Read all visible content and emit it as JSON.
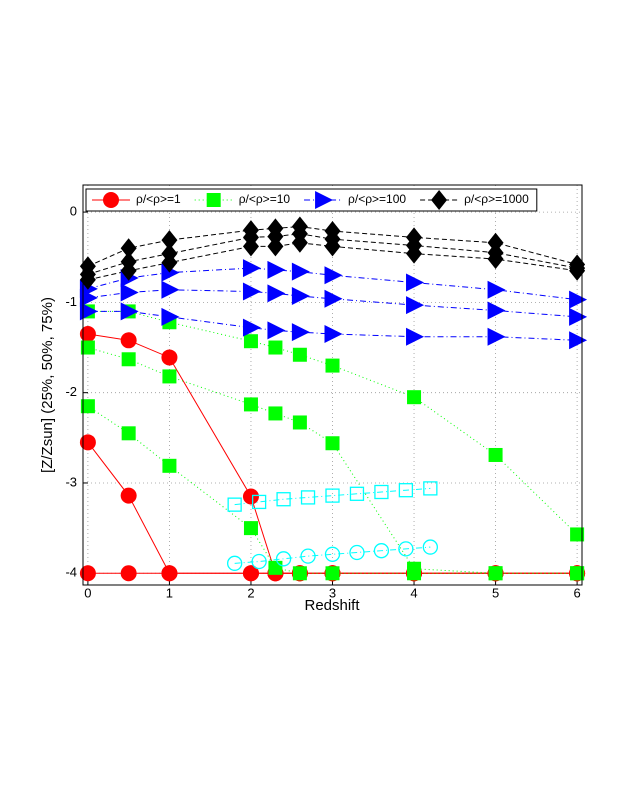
{
  "chart_data": {
    "type": "line",
    "xlabel": "Redshift",
    "ylabel": "[Z/Zsun] (25%, 50%, 75%)",
    "xlim": [
      -0.06,
      6.06
    ],
    "ylim": [
      -4.13,
      0.3
    ],
    "xticks": [
      0,
      1,
      2,
      3,
      4,
      5,
      6
    ],
    "yticks": [
      0,
      -1,
      -2,
      -3,
      -4
    ],
    "grid": true,
    "legend": "top-left",
    "series": [
      {
        "name": "ρ/<ρ>=1",
        "color": "#ff0000",
        "marker": "circle",
        "linestyle": "solid",
        "x": [
          0,
          0.5,
          1,
          2,
          2.3,
          2.6,
          3,
          4,
          5,
          6
        ],
        "values": [
          -1.35,
          -1.42,
          -1.61,
          -3.15,
          -4,
          -4,
          -4,
          -4,
          -4,
          -4
        ]
      },
      {
        "color": "#ff0000",
        "marker": "circle",
        "linestyle": "solid",
        "x": [
          0,
          0.5,
          1,
          2,
          2.3,
          2.6,
          3,
          4,
          5,
          6
        ],
        "values": [
          -2.55,
          -3.14,
          -4,
          -4,
          -4,
          -4,
          -4,
          -4,
          -4,
          -4
        ]
      },
      {
        "color": "#ff0000",
        "marker": "circle",
        "linestyle": "solid",
        "x": [
          0,
          0.5,
          1,
          2,
          2.3,
          2.6,
          3,
          4,
          5,
          6
        ],
        "values": [
          -4,
          -4,
          -4,
          -4,
          -4,
          -4,
          -4,
          -4,
          -4,
          -4
        ]
      },
      {
        "name": "ρ/<ρ>=10",
        "color": "#00ff00",
        "marker": "square",
        "linestyle": "dotted",
        "x": [
          0,
          0.5,
          1,
          2,
          2.3,
          2.6,
          3,
          4,
          5,
          6
        ],
        "values": [
          -1.1,
          -1.1,
          -1.22,
          -1.43,
          -1.5,
          -1.58,
          -1.7,
          -2.05,
          -2.69,
          -3.57
        ]
      },
      {
        "color": "#00ff00",
        "marker": "square",
        "linestyle": "dotted",
        "x": [
          0,
          0.5,
          1,
          2,
          2.3,
          2.6,
          3,
          4,
          5,
          6
        ],
        "values": [
          -1.5,
          -1.63,
          -1.82,
          -2.13,
          -2.23,
          -2.33,
          -2.56,
          -3.95,
          -4,
          -4
        ]
      },
      {
        "color": "#00ff00",
        "marker": "square",
        "linestyle": "dotted",
        "x": [
          0,
          0.5,
          1,
          2,
          2.3,
          2.6,
          3,
          4,
          5,
          6
        ],
        "values": [
          -2.15,
          -2.45,
          -2.81,
          -3.5,
          -3.94,
          -4,
          -4,
          -4,
          -4,
          -4
        ]
      },
      {
        "name": "ρ/<ρ>=100",
        "color": "#0000ff",
        "marker": "triangle",
        "linestyle": "dashdot",
        "x": [
          0,
          0.5,
          1,
          2,
          2.3,
          2.6,
          3,
          4,
          5,
          6
        ],
        "values": [
          -0.85,
          -0.73,
          -0.67,
          -0.62,
          -0.64,
          -0.66,
          -0.7,
          -0.78,
          -0.86,
          -0.97
        ]
      },
      {
        "color": "#0000ff",
        "marker": "triangle",
        "linestyle": "dashdot",
        "x": [
          0,
          0.5,
          1,
          2,
          2.3,
          2.6,
          3,
          4,
          5,
          6
        ],
        "values": [
          -0.95,
          -0.89,
          -0.86,
          -0.88,
          -0.9,
          -0.93,
          -0.96,
          -1.03,
          -1.09,
          -1.16
        ]
      },
      {
        "color": "#0000ff",
        "marker": "triangle",
        "linestyle": "dashdot",
        "x": [
          0,
          0.5,
          1,
          2,
          2.3,
          2.6,
          3,
          4,
          5,
          6
        ],
        "values": [
          -1.1,
          -1.1,
          -1.16,
          -1.28,
          -1.31,
          -1.33,
          -1.35,
          -1.38,
          -1.38,
          -1.42
        ]
      },
      {
        "name": "ρ/<ρ>=1000",
        "color": "#000000",
        "marker": "diamond",
        "linestyle": "dashed",
        "x": [
          0,
          0.5,
          1,
          2,
          2.3,
          2.6,
          3,
          4,
          5,
          6
        ],
        "values": [
          -0.6,
          -0.4,
          -0.31,
          -0.2,
          -0.18,
          -0.16,
          -0.21,
          -0.28,
          -0.34,
          -0.58
        ]
      },
      {
        "color": "#000000",
        "marker": "diamond",
        "linestyle": "dashed",
        "x": [
          0,
          0.5,
          1,
          2,
          2.3,
          2.6,
          3,
          4,
          5,
          6
        ],
        "values": [
          -0.69,
          -0.55,
          -0.46,
          -0.28,
          -0.27,
          -0.24,
          -0.3,
          -0.37,
          -0.45,
          -0.62
        ]
      },
      {
        "color": "#000000",
        "marker": "diamond",
        "linestyle": "dashed",
        "x": [
          0,
          0.5,
          1,
          2,
          2.3,
          2.6,
          3,
          4,
          5,
          6
        ],
        "values": [
          -0.75,
          -0.65,
          -0.56,
          -0.38,
          -0.38,
          -0.34,
          -0.38,
          -0.46,
          -0.52,
          -0.65
        ]
      },
      {
        "color": "#00ffff",
        "marker": "open-square",
        "linestyle": "dashdot",
        "x": [
          1.8,
          2.1,
          2.4,
          2.7,
          3.0,
          3.3,
          3.6,
          3.9,
          4.2
        ],
        "values": [
          -3.24,
          -3.21,
          -3.18,
          -3.16,
          -3.14,
          -3.12,
          -3.1,
          -3.08,
          -3.06
        ]
      },
      {
        "color": "#00ffff",
        "marker": "open-circle",
        "linestyle": "dashdot",
        "x": [
          1.8,
          2.1,
          2.4,
          2.7,
          3.0,
          3.3,
          3.6,
          3.9,
          4.2
        ],
        "values": [
          -3.89,
          -3.87,
          -3.84,
          -3.81,
          -3.79,
          -3.77,
          -3.75,
          -3.73,
          -3.71
        ]
      }
    ]
  }
}
